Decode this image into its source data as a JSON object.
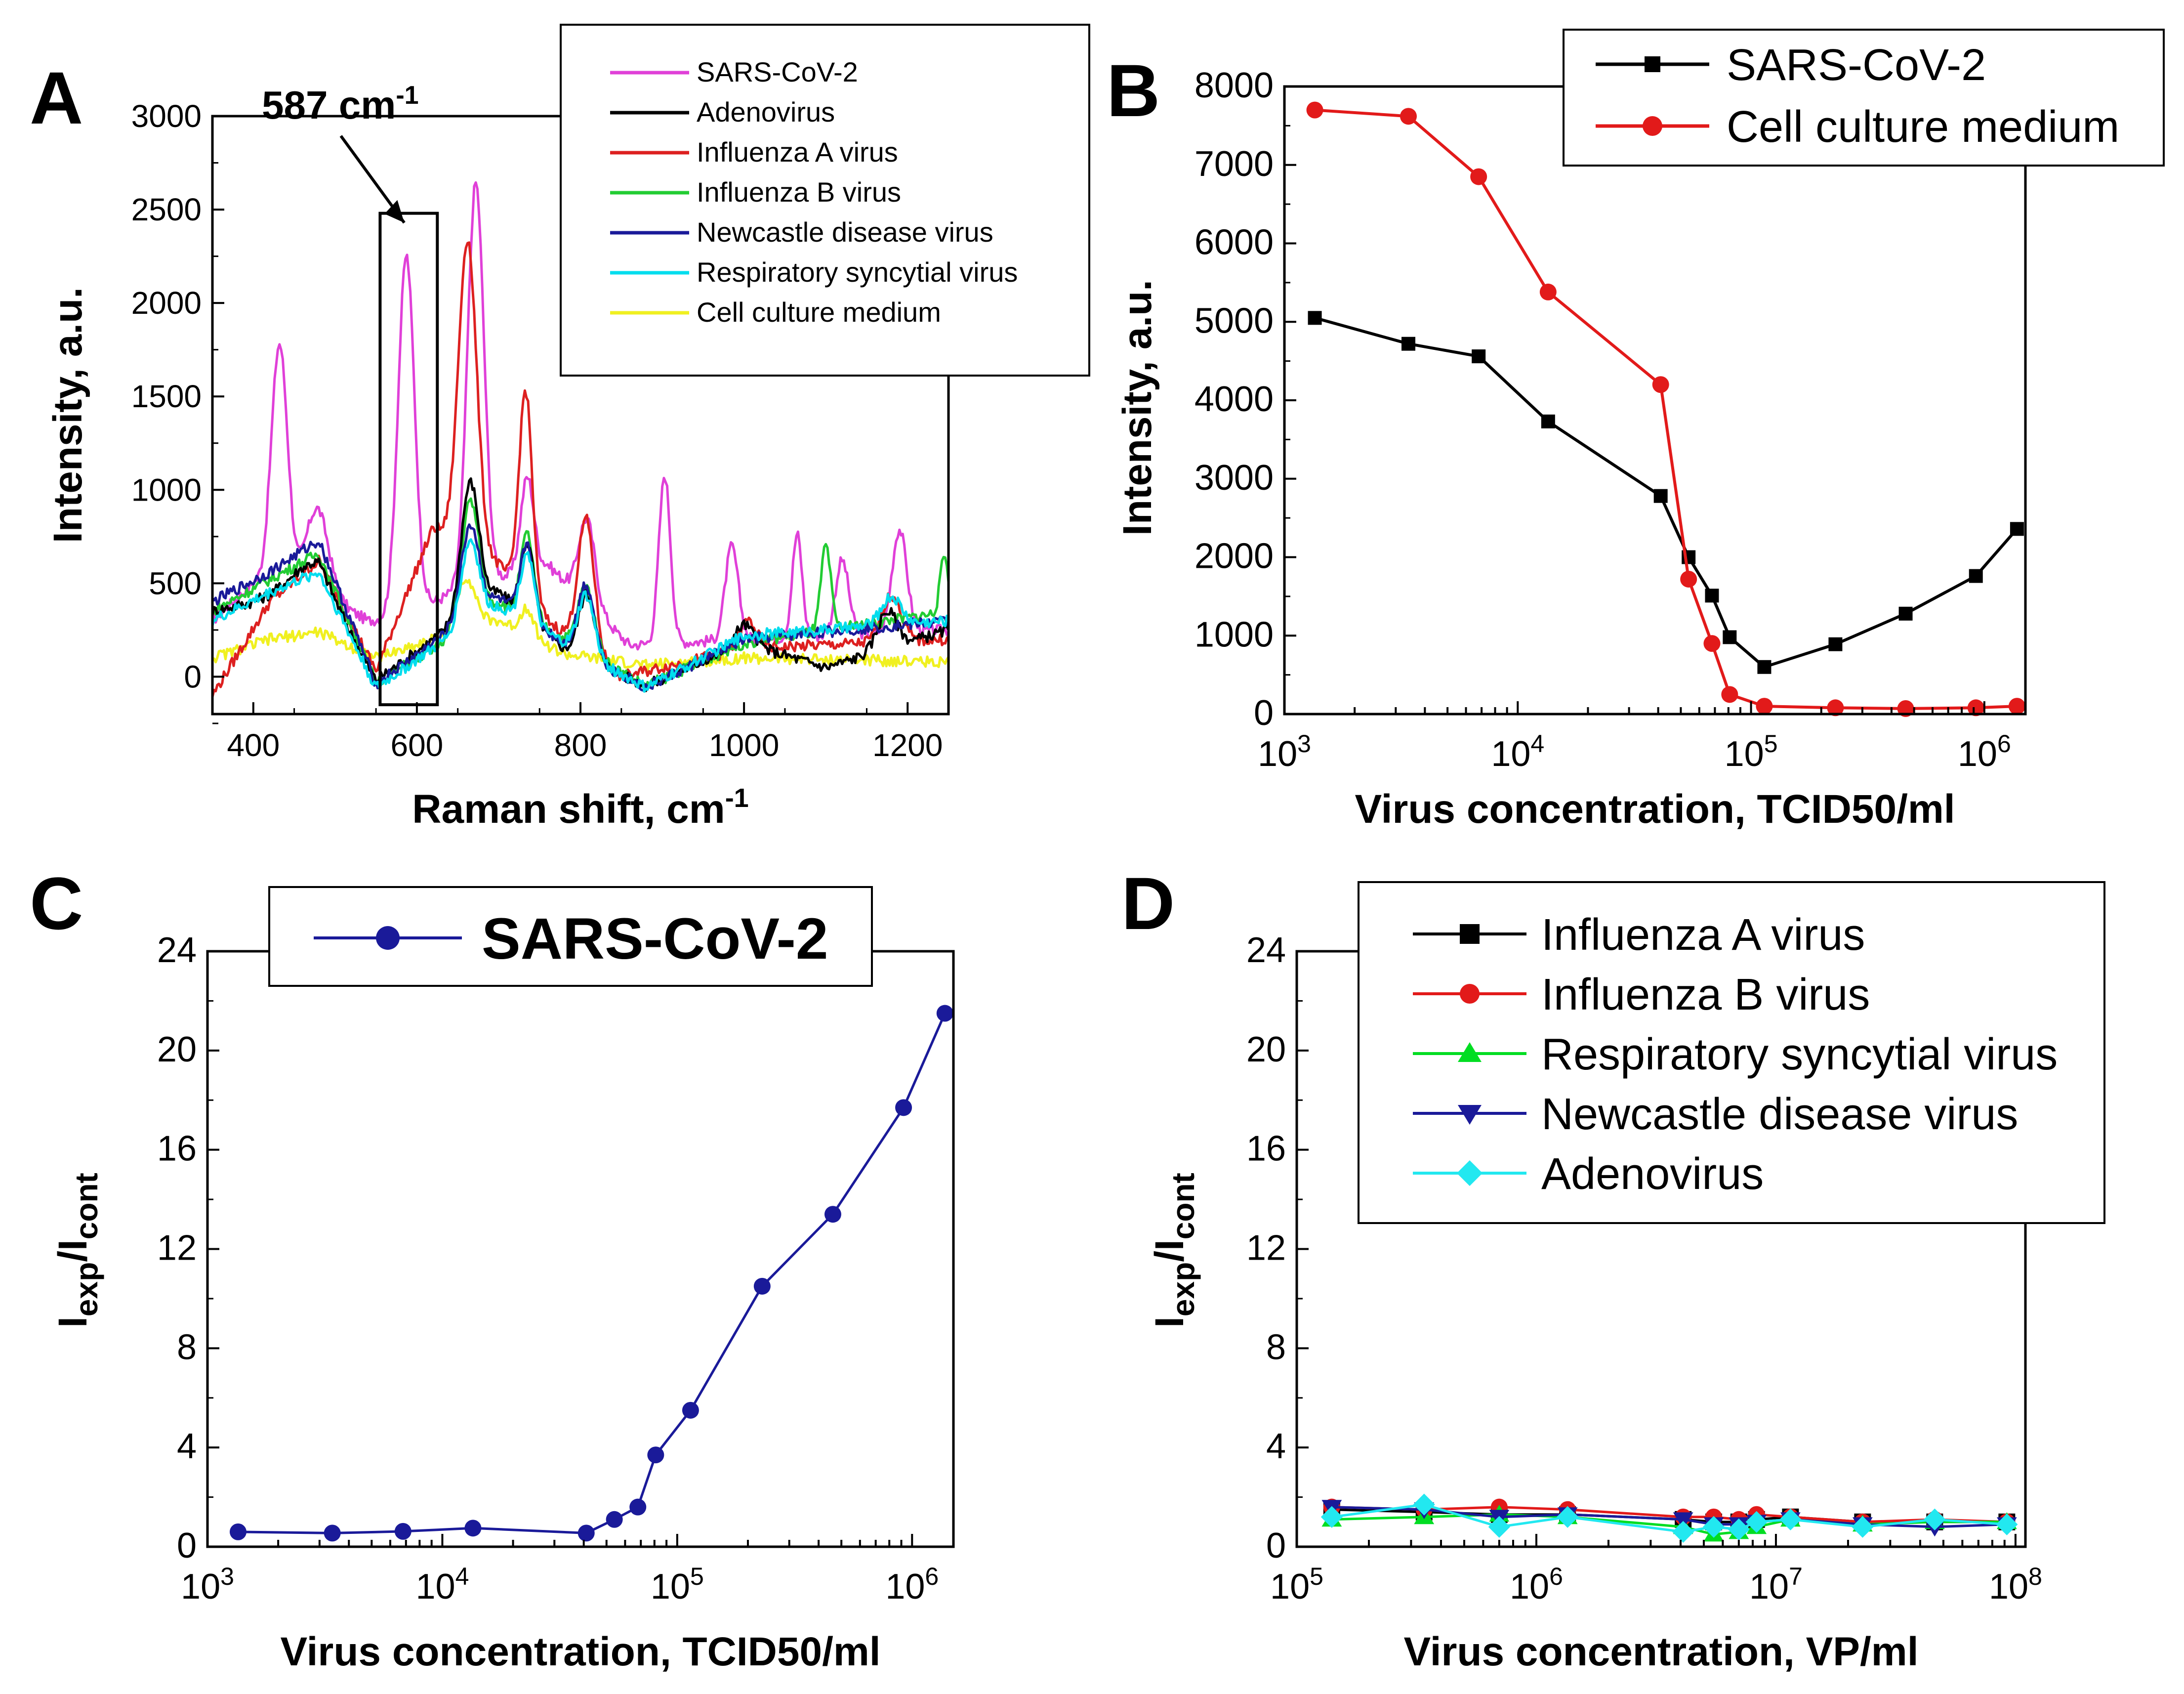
{
  "colors": {
    "sars": "#e040d8",
    "adeno": "#000000",
    "fluA": "#dd2020",
    "fluB": "#22cc33",
    "ndv": "#1a1a99",
    "rsv": "#00ddee",
    "medium": "#f0f020",
    "black": "#000000",
    "red": "#e21a1a",
    "blue": "#1a1a99",
    "green": "#00dd22",
    "cyan": "#22e8f0"
  },
  "chart_data": [
    {
      "panel": "A",
      "type": "line",
      "xlabel": "Raman shift, cm",
      "xlabel_sup": "-1",
      "ylabel": "Intensity, a.u.",
      "xlim": [
        350,
        1250
      ],
      "ylim": [
        -200,
        3000
      ],
      "xticks": [
        "400",
        "600",
        "800",
        "1000",
        "1200"
      ],
      "yticks": [
        "0",
        "500",
        "1000",
        "1500",
        "2000",
        "2500",
        "3000"
      ],
      "annotation": {
        "text": "587 cm",
        "sup": "-1",
        "box_x": [
          555,
          625
        ],
        "box_y": [
          -150,
          2480
        ],
        "points_to": [
          587,
          2350
        ]
      },
      "legend": [
        "SARS-CoV-2",
        "Adenovirus",
        "Influenza A virus",
        "Influenza B virus",
        "Newcastle disease virus",
        "Respiratory syncytial virus",
        "Cell culture medium"
      ],
      "series": [
        {
          "name": "SARS-CoV-2",
          "color_key": "sars",
          "base": [
            [
              350,
              300
            ],
            [
              400,
              500
            ],
            [
              480,
              450
            ],
            [
              540,
              300
            ],
            [
              580,
              320
            ],
            [
              660,
              480
            ],
            [
              760,
              600
            ],
            [
              860,
              170
            ],
            [
              1000,
              200
            ],
            [
              1250,
              250
            ]
          ],
          "peaks": [
            [
              432,
              1300,
              10
            ],
            [
              478,
              450,
              14
            ],
            [
              587,
              1920,
              10
            ],
            [
              672,
              2150,
              10
            ],
            [
              735,
              500,
              8
            ],
            [
              808,
              450,
              10
            ],
            [
              903,
              900,
              7
            ],
            [
              985,
              500,
              8
            ],
            [
              1065,
              550,
              6
            ],
            [
              1120,
              400,
              8
            ],
            [
              1190,
              550,
              9
            ]
          ]
        },
        {
          "name": "Adenovirus",
          "color_key": "adeno",
          "base": [
            [
              350,
              350
            ],
            [
              400,
              400
            ],
            [
              480,
              520
            ],
            [
              550,
              -20
            ],
            [
              620,
              200
            ],
            [
              700,
              450
            ],
            [
              780,
              150
            ],
            [
              880,
              -50
            ],
            [
              1000,
              180
            ],
            [
              1100,
              50
            ],
            [
              1250,
              250
            ]
          ],
          "peaks": [
            [
              470,
              100,
              25
            ],
            [
              665,
              700,
              11
            ],
            [
              735,
              400,
              8
            ],
            [
              808,
              350,
              10
            ],
            [
              1000,
              100,
              12
            ],
            [
              1175,
              200,
              12
            ]
          ]
        },
        {
          "name": "Influenza A virus",
          "color_key": "fluA",
          "base": [
            [
              350,
              -100
            ],
            [
              420,
              400
            ],
            [
              480,
              620
            ],
            [
              550,
              30
            ],
            [
              620,
              800
            ],
            [
              700,
              600
            ],
            [
              760,
              300
            ],
            [
              850,
              0
            ],
            [
              1000,
              150
            ],
            [
              1250,
              200
            ]
          ],
          "peaks": [
            [
              662,
              1650,
              11
            ],
            [
              733,
              1100,
              8
            ],
            [
              807,
              700,
              10
            ],
            [
              1005,
              150,
              10
            ],
            [
              1180,
              250,
              12
            ]
          ]
        },
        {
          "name": "Influenza B virus",
          "color_key": "fluB",
          "base": [
            [
              350,
              350
            ],
            [
              420,
              520
            ],
            [
              480,
              660
            ],
            [
              550,
              -30
            ],
            [
              620,
              150
            ],
            [
              700,
              400
            ],
            [
              780,
              200
            ],
            [
              880,
              -50
            ],
            [
              1000,
              180
            ],
            [
              1250,
              350
            ]
          ],
          "peaks": [
            [
              665,
              650,
              11
            ],
            [
              735,
              450,
              8
            ],
            [
              807,
              350,
              10
            ],
            [
              1100,
              450,
              6
            ],
            [
              1245,
              300,
              5
            ]
          ]
        },
        {
          "name": "Newcastle disease virus",
          "color_key": "ndv",
          "base": [
            [
              350,
              400
            ],
            [
              420,
              560
            ],
            [
              480,
              730
            ],
            [
              550,
              -40
            ],
            [
              620,
              180
            ],
            [
              700,
              420
            ],
            [
              780,
              180
            ],
            [
              880,
              -60
            ],
            [
              1000,
              200
            ],
            [
              1250,
              300
            ]
          ],
          "peaks": [
            [
              665,
              500,
              11
            ],
            [
              735,
              400,
              8
            ],
            [
              807,
              380,
              10
            ]
          ]
        },
        {
          "name": "Respiratory syncytial virus",
          "color_key": "rsv",
          "base": [
            [
              350,
              300
            ],
            [
              420,
              450
            ],
            [
              480,
              560
            ],
            [
              550,
              -60
            ],
            [
              620,
              150
            ],
            [
              700,
              380
            ],
            [
              780,
              180
            ],
            [
              880,
              -60
            ],
            [
              1000,
              220
            ],
            [
              1250,
              300
            ]
          ],
          "peaks": [
            [
              665,
              450,
              11
            ],
            [
              735,
              380,
              8
            ],
            [
              807,
              320,
              10
            ],
            [
              1180,
              150,
              12
            ]
          ]
        },
        {
          "name": "Cell culture medium",
          "color_key": "medium",
          "base": [
            [
              350,
              100
            ],
            [
              420,
              200
            ],
            [
              480,
              240
            ],
            [
              550,
              100
            ],
            [
              620,
              200
            ],
            [
              700,
              300
            ],
            [
              780,
              120
            ],
            [
              880,
              60
            ],
            [
              1000,
              100
            ],
            [
              1250,
              80
            ]
          ],
          "peaks": [
            [
              660,
              280,
              12
            ],
            [
              735,
              150,
              8
            ]
          ]
        }
      ]
    },
    {
      "panel": "B",
      "type": "line",
      "xscale": "log",
      "xlabel": "Virus concentration, TCID50/ml",
      "ylabel": "Intensity, a.u.",
      "xlim": [
        1000,
        1500000
      ],
      "ylim": [
        0,
        8000
      ],
      "xticks": [
        3,
        4,
        5,
        6
      ],
      "yticks": [
        "0",
        "1000",
        "2000",
        "3000",
        "4000",
        "5000",
        "6000",
        "7000",
        "8000"
      ],
      "legend_position": "top-right",
      "series": [
        {
          "name": "SARS-CoV-2",
          "color_key": "black",
          "marker": "square",
          "x": [
            1350,
            3400,
            6800,
            13500,
            41000,
            54000,
            68000,
            81000,
            114000,
            230000,
            460000,
            920000,
            1380000
          ],
          "y": [
            5050,
            4720,
            4560,
            3730,
            2780,
            2000,
            1510,
            980,
            600,
            890,
            1280,
            1760,
            2360
          ]
        },
        {
          "name": "Cell culture medium",
          "color_key": "red",
          "marker": "circle",
          "x": [
            1350,
            3400,
            6800,
            13500,
            41000,
            54000,
            68000,
            81000,
            114000,
            230000,
            460000,
            920000,
            1380000
          ],
          "y": [
            7700,
            7620,
            6850,
            5380,
            4200,
            1720,
            900,
            250,
            100,
            80,
            70,
            80,
            100
          ]
        }
      ]
    },
    {
      "panel": "C",
      "type": "line",
      "xscale": "log",
      "xlabel": "Virus concentration, TCID50/ml",
      "ylabel": "I",
      "ylabel_sub1": "exp",
      "ylabel_mid": "/I",
      "ylabel_sub2": "cont",
      "xlim": [
        1000,
        1500000
      ],
      "ylim": [
        0,
        24
      ],
      "xticks": [
        3,
        4,
        5,
        6
      ],
      "yticks": [
        "0",
        "4",
        "8",
        "12",
        "16",
        "20",
        "24"
      ],
      "legend_position": "top-center",
      "series": [
        {
          "name": "SARS-CoV-2",
          "color_key": "blue",
          "marker": "circle",
          "x": [
            1350,
            3400,
            6800,
            13500,
            41000,
            54000,
            68000,
            81000,
            114000,
            230000,
            460000,
            920000,
            1380000
          ],
          "y": [
            0.6,
            0.55,
            0.62,
            0.75,
            0.55,
            1.1,
            1.6,
            3.7,
            5.5,
            10.5,
            13.4,
            17.7,
            21.5
          ]
        }
      ]
    },
    {
      "panel": "D",
      "type": "line",
      "xscale": "log",
      "xlabel": "Virus concentration, VP/ml",
      "ylabel": "I",
      "ylabel_sub1": "exp",
      "ylabel_mid": "/I",
      "ylabel_sub2": "cont",
      "xlim": [
        100000,
        110000000
      ],
      "ylim": [
        0,
        24
      ],
      "xticks": [
        5,
        6,
        7,
        8
      ],
      "yticks": [
        "0",
        "4",
        "8",
        "12",
        "16",
        "20",
        "24"
      ],
      "legend_position": "top-right",
      "series": [
        {
          "name": "Influenza A virus",
          "color_key": "black",
          "marker": "square",
          "x": [
            140000,
            340000,
            700000,
            1350000,
            4100000,
            5500000,
            7000000,
            8300000,
            11500000,
            23000000,
            46000000,
            92000000
          ],
          "y": [
            1.5,
            1.4,
            1.3,
            1.3,
            1.1,
            1.0,
            1.0,
            1.1,
            1.2,
            1.0,
            1.0,
            1.0
          ]
        },
        {
          "name": "Influenza B virus",
          "color_key": "red",
          "marker": "circle",
          "x": [
            140000,
            340000,
            700000,
            1350000,
            4100000,
            5500000,
            7000000,
            8300000,
            11500000,
            23000000,
            46000000,
            92000000
          ],
          "y": [
            1.6,
            1.5,
            1.6,
            1.5,
            1.2,
            1.2,
            1.1,
            1.3,
            1.2,
            1.0,
            1.1,
            1.0
          ]
        },
        {
          "name": "Respiratory syncytial virus",
          "color_key": "green",
          "marker": "triangle-up",
          "x": [
            140000,
            340000,
            700000,
            1350000,
            4100000,
            5500000,
            7000000,
            8300000,
            11500000,
            23000000,
            46000000,
            92000000
          ],
          "y": [
            1.1,
            1.2,
            1.3,
            1.2,
            0.8,
            0.5,
            0.6,
            0.8,
            1.1,
            0.9,
            1.0,
            1.0
          ]
        },
        {
          "name": "Newcastle disease virus",
          "color_key": "blue",
          "marker": "triangle-down",
          "x": [
            140000,
            340000,
            700000,
            1350000,
            4100000,
            5500000,
            7000000,
            8300000,
            11500000,
            23000000,
            46000000,
            92000000
          ],
          "y": [
            1.6,
            1.5,
            1.2,
            1.3,
            1.1,
            0.9,
            0.9,
            1.0,
            1.1,
            0.9,
            0.8,
            0.9
          ]
        },
        {
          "name": "Adenovirus",
          "color_key": "cyan",
          "marker": "diamond",
          "x": [
            140000,
            340000,
            700000,
            1350000,
            4100000,
            5500000,
            7000000,
            8300000,
            11500000,
            23000000,
            46000000,
            92000000
          ],
          "y": [
            1.2,
            1.7,
            0.8,
            1.2,
            0.6,
            0.8,
            0.7,
            1.0,
            1.1,
            0.8,
            1.1,
            0.9
          ]
        }
      ]
    }
  ]
}
